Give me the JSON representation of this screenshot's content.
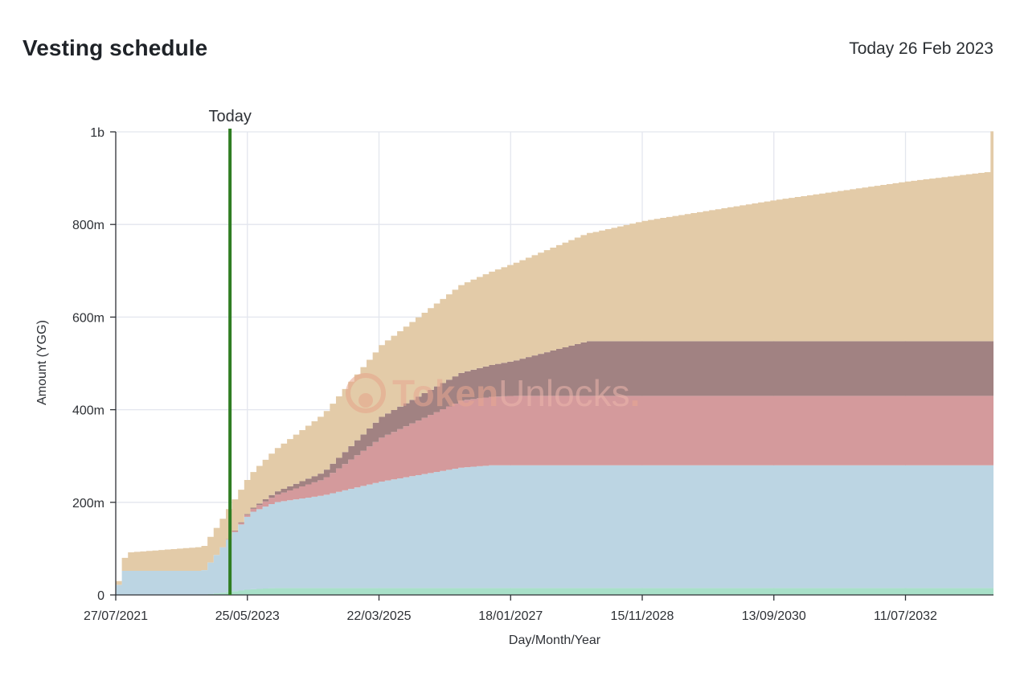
{
  "header": {
    "title": "Vesting schedule",
    "today_text": "Today 26 Feb 2023"
  },
  "watermark": {
    "part1": "Token",
    "part2": "Unlocks",
    "dot": "."
  },
  "chart_data": {
    "type": "area",
    "stacked": true,
    "step": true,
    "xlabel": "Day/Month/Year",
    "ylabel": "Amount (YGG)",
    "x_ticks": [
      "27/07/2021",
      "25/05/2023",
      "22/03/2025",
      "18/01/2027",
      "15/11/2028",
      "13/09/2030",
      "11/07/2032"
    ],
    "x_tick_dates": [
      "2021-07-27",
      "2023-05-25",
      "2025-03-22",
      "2027-01-18",
      "2028-11-15",
      "2030-09-13",
      "2032-07-11"
    ],
    "x_range": [
      "2021-07-27",
      "2033-09-30"
    ],
    "y_ticks": [
      "0",
      "200m",
      "400m",
      "600m",
      "800m",
      "1b"
    ],
    "y_tick_values": [
      0,
      200,
      400,
      600,
      800,
      1000
    ],
    "y_unit": "millions",
    "ylim": [
      0,
      1000
    ],
    "grid": true,
    "today_marker": {
      "label": "Today",
      "date": "2023-02-26",
      "color": "#2f7d22"
    },
    "series": [
      {
        "color": "#a8e0c8",
        "points": [
          [
            "2021-07-27",
            0
          ],
          [
            "2022-10-01",
            0
          ],
          [
            "2023-05-25",
            12
          ],
          [
            "2023-10-01",
            15
          ],
          [
            "2033-09-30",
            15
          ]
        ]
      },
      {
        "color": "#bcd5e3",
        "points": [
          [
            "2021-07-27",
            22
          ],
          [
            "2021-08-27",
            52
          ],
          [
            "2022-10-01",
            52
          ],
          [
            "2023-05-25",
            165
          ],
          [
            "2023-10-01",
            185
          ],
          [
            "2024-06-01",
            200
          ],
          [
            "2025-03-22",
            230
          ],
          [
            "2026-05-01",
            260
          ],
          [
            "2026-10-01",
            265
          ],
          [
            "2033-09-30",
            265
          ]
        ]
      },
      {
        "color": "#d49a9c",
        "points": [
          [
            "2021-07-27",
            0
          ],
          [
            "2023-01-01",
            0
          ],
          [
            "2023-05-25",
            5
          ],
          [
            "2024-06-01",
            35
          ],
          [
            "2025-03-22",
            95
          ],
          [
            "2026-05-01",
            145
          ],
          [
            "2027-01-18",
            150
          ],
          [
            "2028-03-01",
            150
          ],
          [
            "2033-09-30",
            150
          ]
        ]
      },
      {
        "color": "#a18282",
        "points": [
          [
            "2021-07-27",
            0
          ],
          [
            "2023-01-01",
            0
          ],
          [
            "2023-05-25",
            2
          ],
          [
            "2024-06-01",
            15
          ],
          [
            "2025-03-22",
            45
          ],
          [
            "2026-05-01",
            60
          ],
          [
            "2027-01-18",
            75
          ],
          [
            "2028-02-01",
            118
          ],
          [
            "2033-09-30",
            118
          ]
        ]
      },
      {
        "color": "#e3cba8",
        "points": [
          [
            "2021-07-27",
            8
          ],
          [
            "2021-08-27",
            28
          ],
          [
            "2021-09-27",
            40
          ],
          [
            "2022-10-01",
            52
          ],
          [
            "2023-05-25",
            75
          ],
          [
            "2024-06-01",
            125
          ],
          [
            "2025-03-22",
            155
          ],
          [
            "2026-05-01",
            190
          ],
          [
            "2027-01-18",
            210
          ],
          [
            "2028-03-01",
            235
          ],
          [
            "2028-11-15",
            260
          ],
          [
            "2030-09-13",
            305
          ],
          [
            "2032-07-11",
            345
          ],
          [
            "2033-08-15",
            365
          ],
          [
            "2033-08-20",
            453
          ],
          [
            "2033-09-30",
            453
          ]
        ]
      }
    ]
  }
}
